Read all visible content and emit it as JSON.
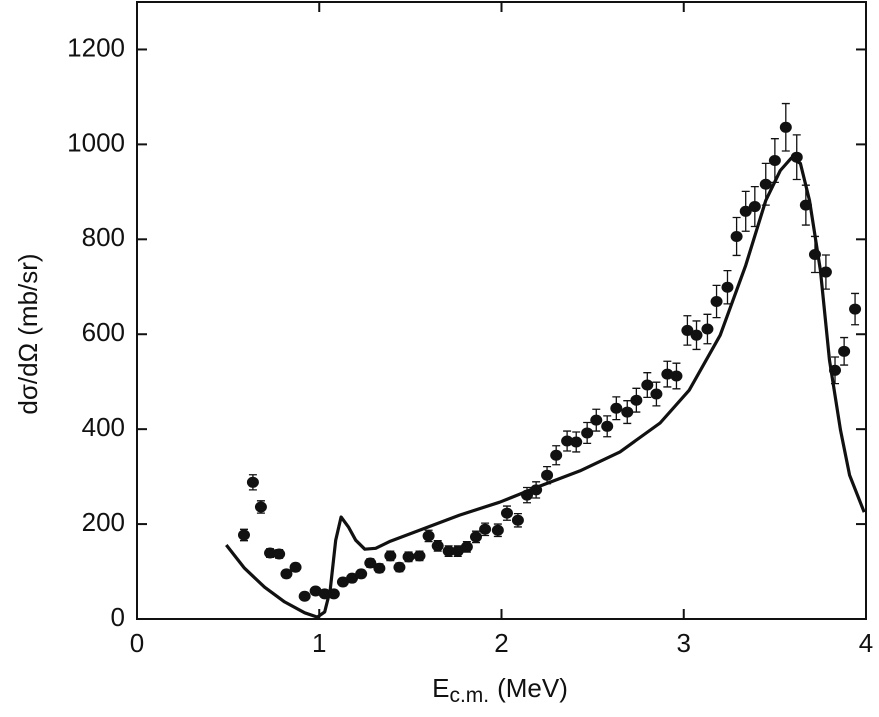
{
  "chart_data": {
    "type": "scatter",
    "x_label": "E",
    "x_label_subscript": "c.m.",
    "x_label_unit": "(MeV)",
    "y_label": "dσ/dΩ (mb/sr)",
    "xlim": [
      0,
      4
    ],
    "ylim": [
      0,
      1300
    ],
    "xticks": [
      0,
      1,
      2,
      3,
      4
    ],
    "yticks": [
      0,
      200,
      400,
      600,
      800,
      1000,
      1200
    ],
    "points": {
      "color": "#111111",
      "x": [
        0.587,
        0.636,
        0.68,
        0.73,
        0.78,
        0.82,
        0.87,
        0.92,
        0.98,
        1.03,
        1.08,
        1.13,
        1.18,
        1.23,
        1.28,
        1.33,
        1.39,
        1.44,
        1.49,
        1.55,
        1.6,
        1.65,
        1.71,
        1.76,
        1.81,
        1.86,
        1.91,
        1.98,
        2.03,
        2.09,
        2.14,
        2.19,
        2.25,
        2.3,
        2.36,
        2.41,
        2.47,
        2.52,
        2.58,
        2.63,
        2.69,
        2.74,
        2.8,
        2.85,
        2.91,
        2.96,
        3.02,
        3.07,
        3.13,
        3.18,
        3.24,
        3.29,
        3.34,
        3.39,
        3.45,
        3.5,
        3.56,
        3.62,
        3.67,
        3.72,
        3.78,
        3.83,
        3.88,
        3.94
      ],
      "values": [
        177,
        288,
        236,
        139,
        137,
        95,
        109,
        48,
        59,
        53,
        53,
        78,
        86,
        95,
        118,
        107,
        133,
        109,
        131,
        133,
        175,
        154,
        143,
        143,
        152,
        173,
        189,
        187,
        223,
        208,
        261,
        272,
        303,
        345,
        375,
        373,
        392,
        419,
        406,
        444,
        436,
        461,
        493,
        474,
        516,
        512,
        608,
        598,
        611,
        669,
        699,
        806,
        859,
        869,
        916,
        966,
        1036,
        973,
        872,
        768,
        731,
        524,
        564,
        653
      ],
      "errors": [
        12,
        16,
        13,
        9,
        9,
        8,
        8,
        7,
        7,
        7,
        7,
        8,
        8,
        8,
        9,
        9,
        10,
        9,
        10,
        10,
        12,
        11,
        11,
        11,
        11,
        12,
        13,
        13,
        15,
        14,
        16,
        17,
        18,
        20,
        21,
        21,
        22,
        23,
        22,
        24,
        24,
        25,
        26,
        25,
        27,
        27,
        31,
        30,
        31,
        34,
        35,
        40,
        42,
        42,
        44,
        46,
        50,
        47,
        42,
        38,
        36,
        28,
        29,
        33
      ]
    },
    "curve": {
      "color": "#111111",
      "x": [
        0.49,
        0.59,
        0.7,
        0.81,
        0.92,
        0.99,
        1.03,
        1.06,
        1.09,
        1.12,
        1.16,
        1.2,
        1.25,
        1.31,
        1.39,
        1.55,
        1.77,
        1.99,
        2.21,
        2.43,
        2.65,
        2.87,
        3.03,
        3.2,
        3.34,
        3.45,
        3.53,
        3.59,
        3.64,
        3.69,
        3.75,
        3.8,
        3.86,
        3.91,
        3.99
      ],
      "values": [
        156,
        107,
        67,
        36,
        13,
        4,
        15,
        61,
        166,
        215,
        194,
        166,
        147,
        149,
        164,
        187,
        219,
        246,
        280,
        312,
        352,
        413,
        482,
        598,
        745,
        882,
        945,
        971,
        960,
        882,
        735,
        545,
        398,
        303,
        225
      ]
    }
  }
}
